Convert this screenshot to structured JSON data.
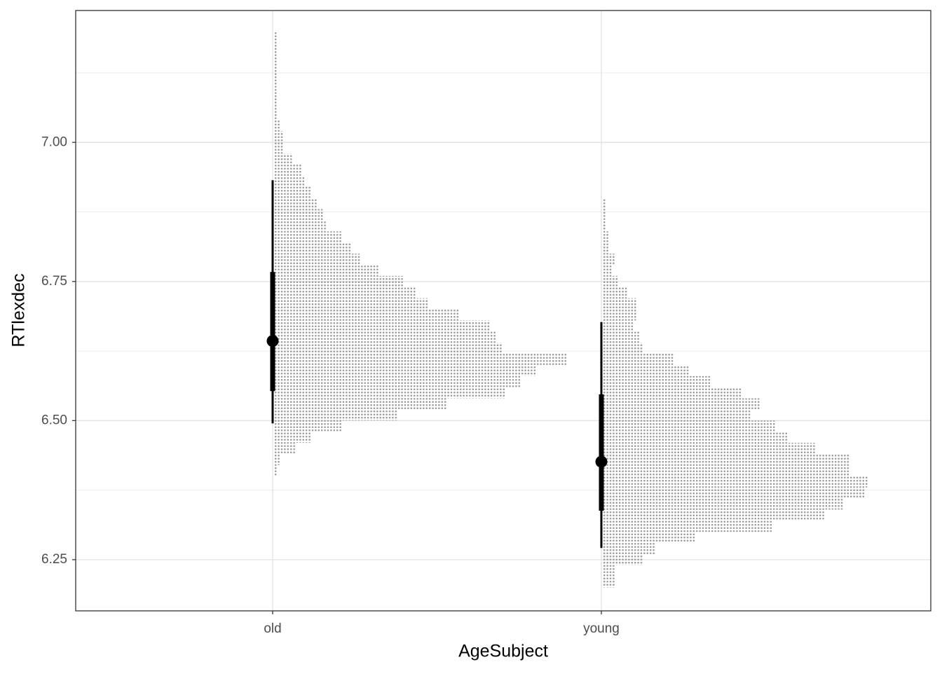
{
  "chart_data": {
    "type": "dots",
    "x_label": "AgeSubject",
    "y_label": "RTlexdec",
    "categories": [
      "old",
      "young"
    ],
    "ylim": [
      6.158,
      7.237
    ],
    "yticks": [
      6.25,
      {
        "value": 6.5,
        "label": "6.50"
      },
      6.75,
      {
        "value": 7,
        "label": "7.00"
      }
    ],
    "y_minor_ticks": [
      6.375,
      6.625,
      6.875,
      7.125
    ],
    "grid": true,
    "dot_color": "#9a9a9a",
    "interval_color": "#000000",
    "groups": [
      {
        "bins": [
          6.4,
          6.42,
          6.44,
          6.46,
          6.48,
          6.5,
          6.52,
          6.54,
          6.56,
          6.58,
          6.6,
          6.62,
          6.64,
          6.66,
          6.68,
          6.7,
          6.72,
          6.74,
          6.76,
          6.78,
          6.8,
          6.82,
          6.84,
          6.86,
          6.88,
          6.9,
          6.92,
          6.94,
          6.96,
          6.98,
          7.0,
          7.02,
          7.04,
          7.06,
          7.08,
          7.1,
          7.12,
          7.14,
          7.16,
          7.18,
          7.2
        ],
        "counts": [
          1,
          2,
          7,
          12,
          22,
          40,
          56,
          75,
          80,
          85,
          95,
          74,
          72,
          70,
          60,
          50,
          46,
          42,
          34,
          28,
          25,
          22,
          17,
          16,
          14,
          12,
          10,
          9,
          6,
          3,
          3,
          2,
          1,
          1,
          1,
          1,
          1,
          1,
          1,
          1
        ],
        "point": 6.643,
        "thick": [
          6.553,
          6.767
        ],
        "thin": [
          6.495,
          6.932
        ]
      },
      {
        "bins": [
          6.2,
          6.22,
          6.24,
          6.26,
          6.28,
          6.3,
          6.32,
          6.34,
          6.36,
          6.38,
          6.4,
          6.42,
          6.44,
          6.46,
          6.48,
          6.5,
          6.52,
          6.54,
          6.56,
          6.58,
          6.6,
          6.62,
          6.64,
          6.66,
          6.68,
          6.7,
          6.72,
          6.74,
          6.76,
          6.78,
          6.8,
          6.82,
          6.84,
          6.86,
          6.88,
          6.9
        ],
        "counts": [
          4,
          4,
          13,
          17,
          30,
          55,
          72,
          78,
          85,
          86,
          80,
          80,
          69,
          60,
          56,
          48,
          51,
          45,
          35,
          28,
          23,
          13,
          12,
          10,
          11,
          11,
          8,
          5,
          3,
          4,
          2,
          2,
          1,
          1,
          1
        ],
        "point": 6.426,
        "thick": [
          6.338,
          6.547
        ],
        "thin": [
          6.271,
          6.677
        ]
      }
    ]
  }
}
